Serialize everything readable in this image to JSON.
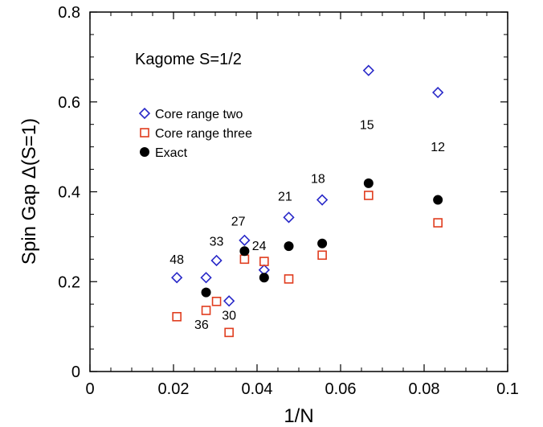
{
  "chart_data": {
    "type": "scatter",
    "title": "Kagome S=1/2",
    "xlabel": "1/N",
    "ylabel": "Spin Gap Δ(S=1)",
    "xlim": [
      0,
      0.1
    ],
    "ylim": [
      0,
      0.8
    ],
    "x_ticks": [
      "0",
      "0.02",
      "0.04",
      "0.06",
      "0.08",
      "0.1"
    ],
    "y_ticks": [
      "0",
      "0.2",
      "0.4",
      "0.6",
      "0.8"
    ],
    "grid": false,
    "legend_position": "upper-left",
    "series": [
      {
        "name": "Core range two",
        "marker": "diamond-open",
        "color": "#2828c8",
        "points": [
          {
            "x": 0.0208,
            "y": 0.209
          },
          {
            "x": 0.0278,
            "y": 0.209
          },
          {
            "x": 0.0303,
            "y": 0.247
          },
          {
            "x": 0.0333,
            "y": 0.157
          },
          {
            "x": 0.037,
            "y": 0.292
          },
          {
            "x": 0.0417,
            "y": 0.226
          },
          {
            "x": 0.0476,
            "y": 0.343
          },
          {
            "x": 0.0556,
            "y": 0.382
          },
          {
            "x": 0.0667,
            "y": 0.67
          },
          {
            "x": 0.0833,
            "y": 0.621
          }
        ]
      },
      {
        "name": "Core range three",
        "marker": "square-open",
        "color": "#e03c1e",
        "points": [
          {
            "x": 0.0208,
            "y": 0.122
          },
          {
            "x": 0.0278,
            "y": 0.136
          },
          {
            "x": 0.0303,
            "y": 0.156
          },
          {
            "x": 0.0333,
            "y": 0.087
          },
          {
            "x": 0.037,
            "y": 0.25
          },
          {
            "x": 0.0417,
            "y": 0.245
          },
          {
            "x": 0.0476,
            "y": 0.206
          },
          {
            "x": 0.0556,
            "y": 0.259
          },
          {
            "x": 0.0667,
            "y": 0.392
          },
          {
            "x": 0.0833,
            "y": 0.331
          }
        ]
      },
      {
        "name": "Exact",
        "marker": "circle-filled",
        "color": "#000000",
        "points": [
          {
            "x": 0.0278,
            "y": 0.176
          },
          {
            "x": 0.037,
            "y": 0.268
          },
          {
            "x": 0.0417,
            "y": 0.209
          },
          {
            "x": 0.0476,
            "y": 0.279
          },
          {
            "x": 0.0556,
            "y": 0.285
          },
          {
            "x": 0.0667,
            "y": 0.419
          },
          {
            "x": 0.0833,
            "y": 0.382
          }
        ]
      }
    ],
    "annotations": [
      {
        "text": "48",
        "x": 0.0208,
        "y": 0.24
      },
      {
        "text": "33",
        "x": 0.0303,
        "y": 0.28
      },
      {
        "text": "27",
        "x": 0.0355,
        "y": 0.325
      },
      {
        "text": "24",
        "x": 0.0405,
        "y": 0.27
      },
      {
        "text": "21",
        "x": 0.0467,
        "y": 0.38
      },
      {
        "text": "18",
        "x": 0.0546,
        "y": 0.42
      },
      {
        "text": "15",
        "x": 0.0663,
        "y": 0.54
      },
      {
        "text": "12",
        "x": 0.0833,
        "y": 0.49
      },
      {
        "text": "36",
        "x": 0.0267,
        "y": 0.095
      },
      {
        "text": "30",
        "x": 0.0333,
        "y": 0.115
      }
    ]
  }
}
